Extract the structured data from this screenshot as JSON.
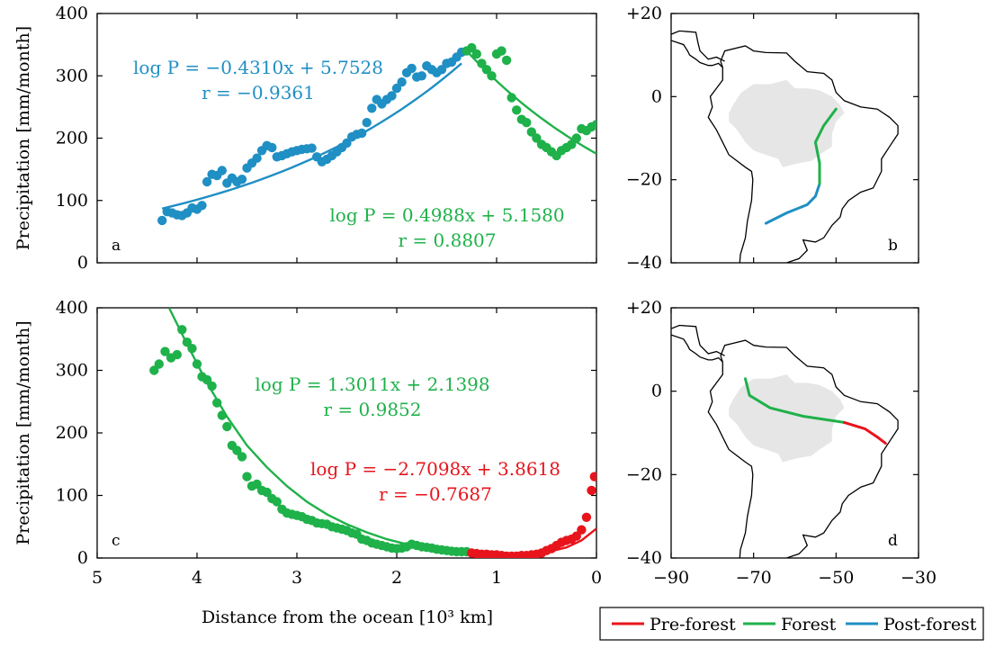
{
  "colors": {
    "pre_forest": "#e8141c",
    "forest": "#1fb14a",
    "post_forest": "#1f8fc4",
    "land": "#e6e6e6"
  },
  "chart_data": [
    {
      "type": "scatter",
      "panel_label": "a",
      "xlabel": "Distance from the ocean [10³ km]",
      "ylabel": "Precipitation [mm/month]",
      "xlim": [
        5,
        0
      ],
      "ylim": [
        0,
        400
      ],
      "xticks": [
        "5",
        "4",
        "3",
        "2",
        "1",
        "0"
      ],
      "yticks": [
        "0",
        "100",
        "200",
        "300",
        "400"
      ],
      "series": [
        {
          "name": "Post-forest",
          "color": "#1f8fc4",
          "x": [
            4.35,
            4.3,
            4.25,
            4.2,
            4.15,
            4.1,
            4.05,
            4.0,
            3.95,
            3.9,
            3.85,
            3.8,
            3.75,
            3.7,
            3.65,
            3.6,
            3.55,
            3.5,
            3.45,
            3.4,
            3.35,
            3.3,
            3.25,
            3.2,
            3.15,
            3.1,
            3.05,
            3.0,
            2.95,
            2.9,
            2.85,
            2.8,
            2.75,
            2.7,
            2.65,
            2.6,
            2.55,
            2.5,
            2.45,
            2.4,
            2.35,
            2.3,
            2.25,
            2.2,
            2.15,
            2.1,
            2.05,
            2.0,
            1.95,
            1.9,
            1.85,
            1.8,
            1.75,
            1.7,
            1.65,
            1.6,
            1.55,
            1.5,
            1.45,
            1.4,
            1.35
          ],
          "y": [
            68,
            82,
            80,
            77,
            76,
            80,
            88,
            86,
            92,
            130,
            142,
            140,
            148,
            128,
            136,
            130,
            134,
            152,
            160,
            168,
            180,
            188,
            185,
            170,
            172,
            175,
            178,
            180,
            182,
            183,
            184,
            170,
            162,
            166,
            172,
            178,
            185,
            192,
            202,
            206,
            208,
            225,
            248,
            262,
            255,
            262,
            268,
            280,
            290,
            305,
            312,
            298,
            300,
            316,
            310,
            305,
            310,
            320,
            322,
            330,
            338
          ],
          "fit": {
            "x_start": 4.35,
            "x_end": 1.35,
            "y_start": 87,
            "y_end": 320
          },
          "equation": "log P = −0.4310x + 5.7528",
          "r": "r = −0.9361"
        },
        {
          "name": "Forest",
          "color": "#1fb14a",
          "x": [
            1.3,
            1.25,
            1.2,
            1.15,
            1.1,
            1.05,
            1.0,
            0.95,
            0.9,
            0.85,
            0.8,
            0.75,
            0.7,
            0.65,
            0.6,
            0.55,
            0.5,
            0.45,
            0.4,
            0.35,
            0.3,
            0.25,
            0.2,
            0.15,
            0.1,
            0.05,
            0.0
          ],
          "y": [
            340,
            345,
            335,
            320,
            310,
            300,
            335,
            340,
            325,
            265,
            245,
            230,
            225,
            210,
            200,
            190,
            185,
            178,
            172,
            180,
            185,
            190,
            200,
            215,
            212,
            218,
            222
          ],
          "fit": {
            "x_start": 1.3,
            "x_end": 0.0,
            "y_start": 340,
            "y_end": 175
          },
          "equation": "log P = 0.4988x + 5.1580",
          "r": "r = 0.8807"
        }
      ]
    },
    {
      "type": "scatter",
      "panel_label": "c",
      "xlabel": "Distance from the ocean [10³ km]",
      "ylabel": "Precipitation [mm/month]",
      "xlim": [
        5,
        0
      ],
      "ylim": [
        0,
        400
      ],
      "xticks": [
        "5",
        "4",
        "3",
        "2",
        "1",
        "0"
      ],
      "yticks": [
        "0",
        "100",
        "200",
        "300",
        "400"
      ],
      "series": [
        {
          "name": "Forest",
          "color": "#1fb14a",
          "x": [
            4.43,
            4.38,
            4.32,
            4.26,
            4.2,
            4.15,
            4.1,
            4.05,
            4.0,
            3.95,
            3.9,
            3.85,
            3.8,
            3.75,
            3.7,
            3.65,
            3.6,
            3.55,
            3.5,
            3.45,
            3.4,
            3.35,
            3.3,
            3.25,
            3.2,
            3.15,
            3.1,
            3.05,
            3.0,
            2.95,
            2.9,
            2.85,
            2.8,
            2.75,
            2.7,
            2.65,
            2.6,
            2.55,
            2.5,
            2.45,
            2.4,
            2.35,
            2.3,
            2.25,
            2.2,
            2.15,
            2.1,
            2.05,
            2.0,
            1.95,
            1.9,
            1.85,
            1.8,
            1.75,
            1.7,
            1.65,
            1.6,
            1.55,
            1.5,
            1.45,
            1.4,
            1.35,
            1.3
          ],
          "y": [
            300,
            310,
            330,
            320,
            325,
            365,
            345,
            335,
            310,
            290,
            285,
            275,
            248,
            228,
            210,
            180,
            172,
            162,
            130,
            115,
            118,
            108,
            105,
            95,
            90,
            78,
            72,
            70,
            68,
            66,
            62,
            60,
            56,
            55,
            54,
            50,
            48,
            46,
            44,
            40,
            38,
            30,
            28,
            24,
            22,
            20,
            18,
            16,
            15,
            16,
            18,
            22,
            20,
            18,
            17,
            16,
            14,
            13,
            12,
            11,
            10,
            10,
            10
          ],
          "fit_points": [
            [
              4.28,
              400
            ],
            [
              4.1,
              342
            ],
            [
              3.9,
              280
            ],
            [
              3.7,
              226
            ],
            [
              3.5,
              180
            ],
            [
              3.3,
              145
            ],
            [
              3.1,
              115
            ],
            [
              2.9,
              90
            ],
            [
              2.7,
              70
            ],
            [
              2.5,
              54
            ],
            [
              2.3,
              41
            ],
            [
              2.1,
              30
            ],
            [
              1.9,
              22
            ],
            [
              1.7,
              16
            ],
            [
              1.5,
              12
            ],
            [
              1.3,
              9
            ]
          ],
          "equation": "log P = 1.3011x + 2.1398",
          "r": "r = 0.9852"
        },
        {
          "name": "Pre-forest",
          "color": "#e8141c",
          "x": [
            1.25,
            1.2,
            1.15,
            1.1,
            1.05,
            1.0,
            0.95,
            0.9,
            0.85,
            0.8,
            0.75,
            0.7,
            0.65,
            0.6,
            0.55,
            0.5,
            0.45,
            0.4,
            0.35,
            0.3,
            0.25,
            0.2,
            0.15,
            0.1,
            0.05,
            0.02
          ],
          "y": [
            8,
            7,
            6,
            6,
            5,
            5,
            4,
            3,
            3,
            3,
            4,
            4,
            5,
            6,
            8,
            12,
            15,
            20,
            25,
            28,
            30,
            35,
            45,
            65,
            108,
            130
          ],
          "fit_points": [
            [
              1.25,
              8
            ],
            [
              1.1,
              6
            ],
            [
              0.9,
              4
            ],
            [
              0.7,
              5
            ],
            [
              0.5,
              9
            ],
            [
              0.3,
              17
            ],
            [
              0.15,
              28
            ],
            [
              0.0,
              47
            ]
          ],
          "equation": "log P = −2.7098x + 3.8618",
          "r": "r = −0.7687"
        }
      ]
    },
    {
      "type": "map",
      "panel_label": "b",
      "xlim": [
        -90,
        -30
      ],
      "ylim": [
        -40,
        20
      ],
      "yticks": [
        "+20",
        "0",
        "−20",
        "−40"
      ],
      "transect": [
        {
          "name": "Post-forest",
          "color": "#1f8fc4",
          "points": [
            [
              -67,
              -30.5
            ],
            [
              -62,
              -28
            ],
            [
              -57,
              -26
            ],
            [
              -55,
              -24
            ],
            [
              -54,
              -21
            ]
          ]
        },
        {
          "name": "Forest",
          "color": "#1fb14a",
          "points": [
            [
              -54,
              -21
            ],
            [
              -54,
              -16
            ],
            [
              -55,
              -11
            ],
            [
              -53,
              -7
            ],
            [
              -50,
              -3
            ]
          ]
        }
      ]
    },
    {
      "type": "map",
      "panel_label": "d",
      "xlim": [
        -90,
        -30
      ],
      "xticks": [
        "−90",
        "−70",
        "−50",
        "−30"
      ],
      "ylim": [
        -40,
        20
      ],
      "yticks": [
        "+20",
        "0",
        "−20",
        "−40"
      ],
      "transect": [
        {
          "name": "Forest",
          "color": "#1fb14a",
          "points": [
            [
              -72,
              3
            ],
            [
              -71,
              -1
            ],
            [
              -66,
              -4
            ],
            [
              -58,
              -6
            ],
            [
              -48,
              -7.5
            ]
          ]
        },
        {
          "name": "Pre-forest",
          "color": "#e8141c",
          "points": [
            [
              -48,
              -7.5
            ],
            [
              -43,
              -9
            ],
            [
              -40,
              -11
            ],
            [
              -38,
              -12.5
            ]
          ]
        }
      ]
    }
  ],
  "legend": {
    "items": [
      {
        "label": "Pre-forest",
        "color": "#e8141c"
      },
      {
        "label": "Forest",
        "color": "#1fb14a"
      },
      {
        "label": "Post-forest",
        "color": "#1f8fc4"
      }
    ]
  }
}
